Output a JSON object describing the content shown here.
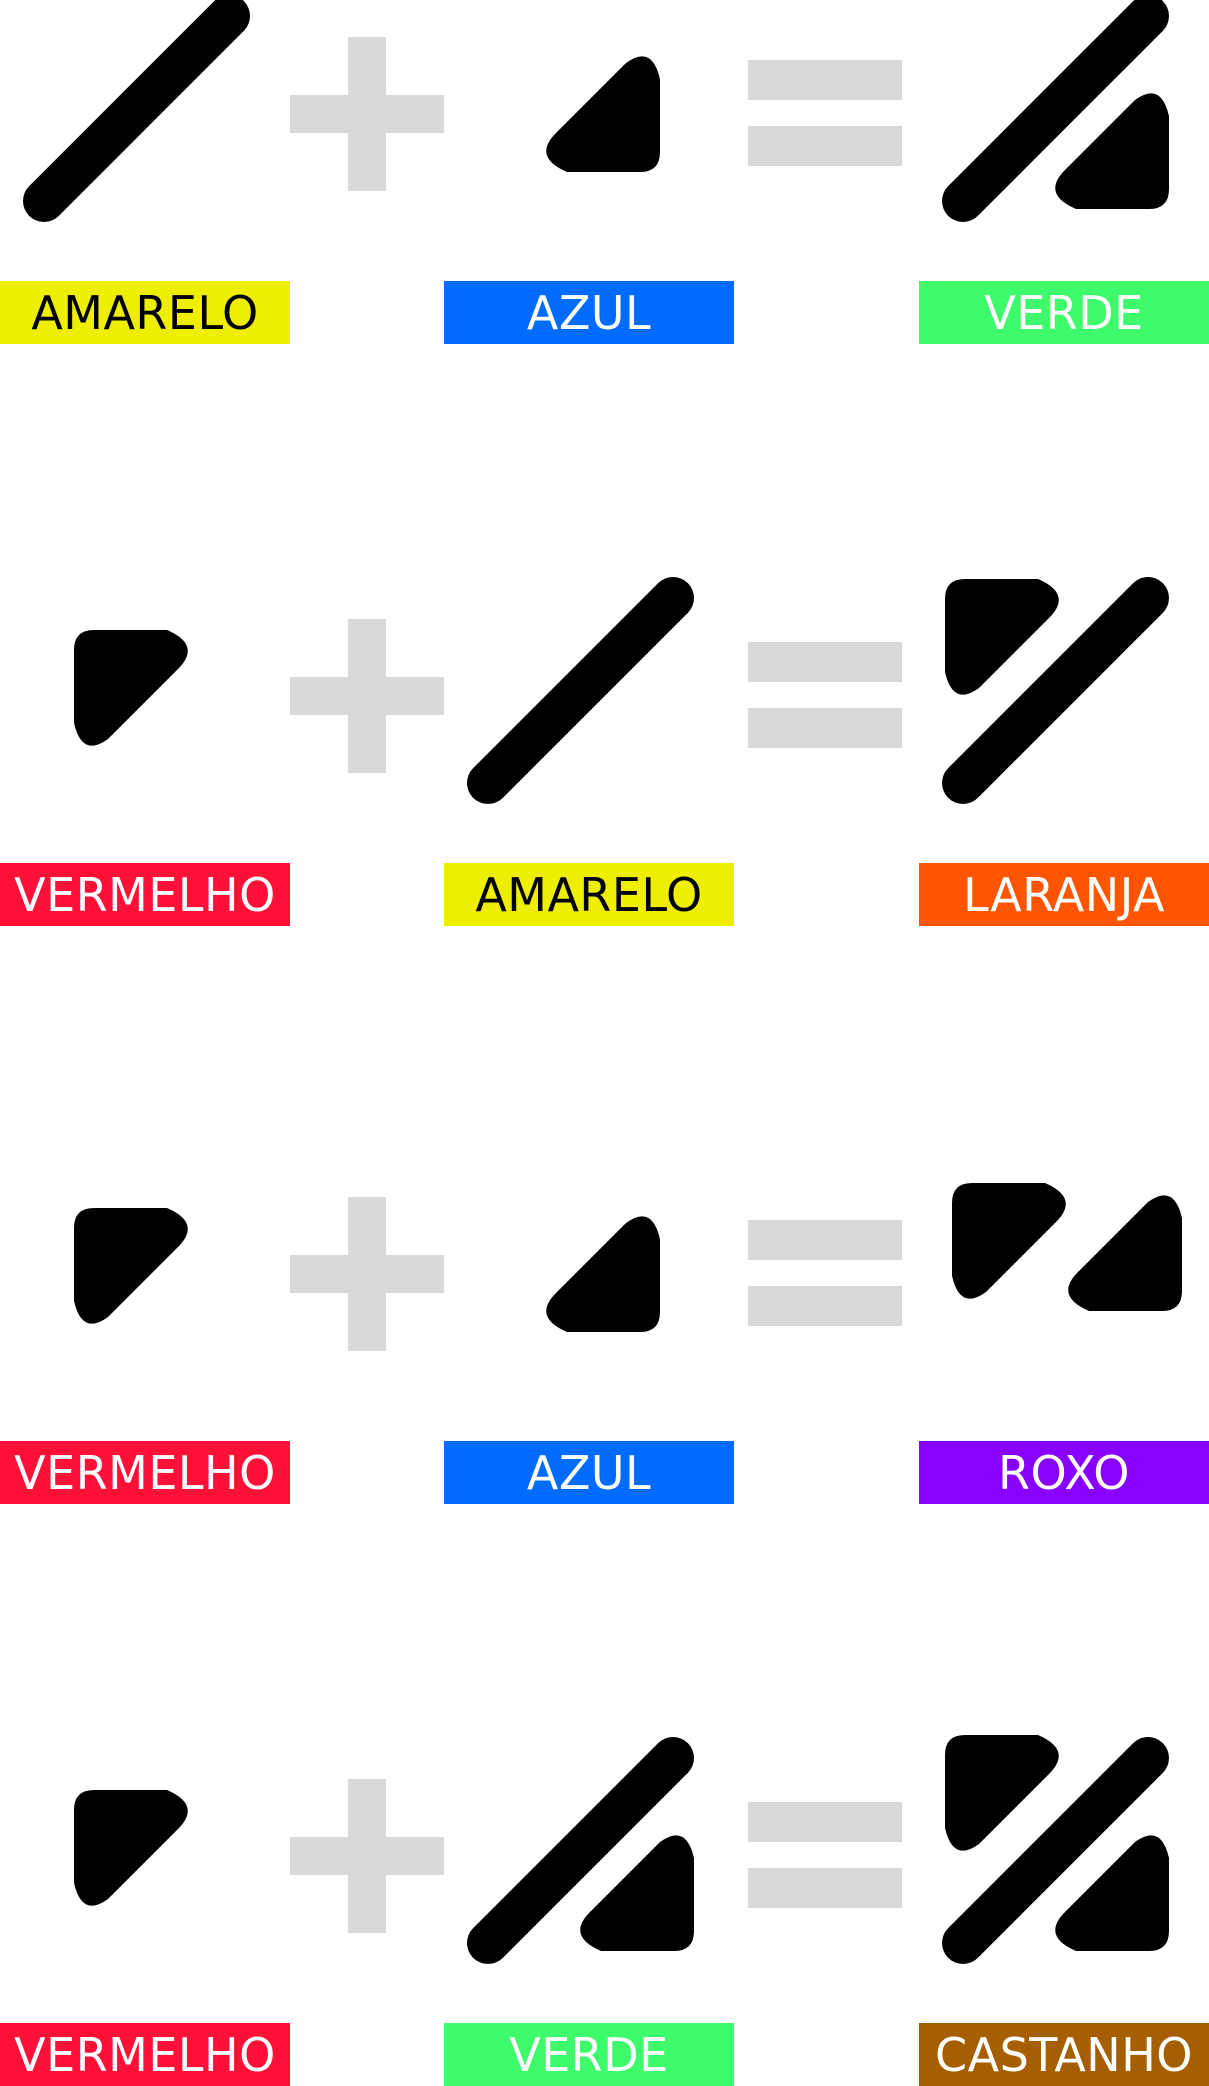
{
  "equations": [
    {
      "terms": [
        {
          "label": "AMARELO",
          "color": "#EEEE00",
          "text_color": "#000000",
          "icon": "yellow-line-icon"
        },
        {
          "label": "AZUL",
          "color": "#006CFF",
          "text_color": "#FFFFFF",
          "icon": "blue-triangle-icon"
        },
        {
          "label": "VERDE",
          "color": "#3EFB6C",
          "text_color": "#FFFFFF",
          "icon": "green-line-triangle-icon"
        }
      ]
    },
    {
      "terms": [
        {
          "label": "VERMELHO",
          "color": "#FF1037",
          "text_color": "#FFFFFF",
          "icon": "red-triangle-icon"
        },
        {
          "label": "AMARELO",
          "color": "#EEEE00",
          "text_color": "#000000",
          "icon": "yellow-line-icon"
        },
        {
          "label": "LARANJA",
          "color": "#FF5500",
          "text_color": "#FFFFFF",
          "icon": "orange-triangle-line-icon"
        }
      ]
    },
    {
      "terms": [
        {
          "label": "VERMELHO",
          "color": "#FF1037",
          "text_color": "#FFFFFF",
          "icon": "red-triangle-icon"
        },
        {
          "label": "AZUL",
          "color": "#006CFF",
          "text_color": "#FFFFFF",
          "icon": "blue-triangle-icon"
        },
        {
          "label": "ROXO",
          "color": "#8800FF",
          "text_color": "#FFFFFF",
          "icon": "purple-two-triangles-icon"
        }
      ]
    },
    {
      "terms": [
        {
          "label": "VERMELHO",
          "color": "#FF1037",
          "text_color": "#FFFFFF",
          "icon": "red-triangle-icon"
        },
        {
          "label": "VERDE",
          "color": "#3EFB6C",
          "text_color": "#FFFFFF",
          "icon": "green-line-triangle-icon"
        },
        {
          "label": "CASTANHO",
          "color": "#A65F00",
          "text_color": "#FFFFFF",
          "icon": "brown-all-shapes-icon"
        }
      ]
    }
  ],
  "symbol_color": "#000000",
  "operator_color": "#D9D9D9",
  "operators": {
    "plus": "plus-icon",
    "equals": "equals-icon"
  }
}
